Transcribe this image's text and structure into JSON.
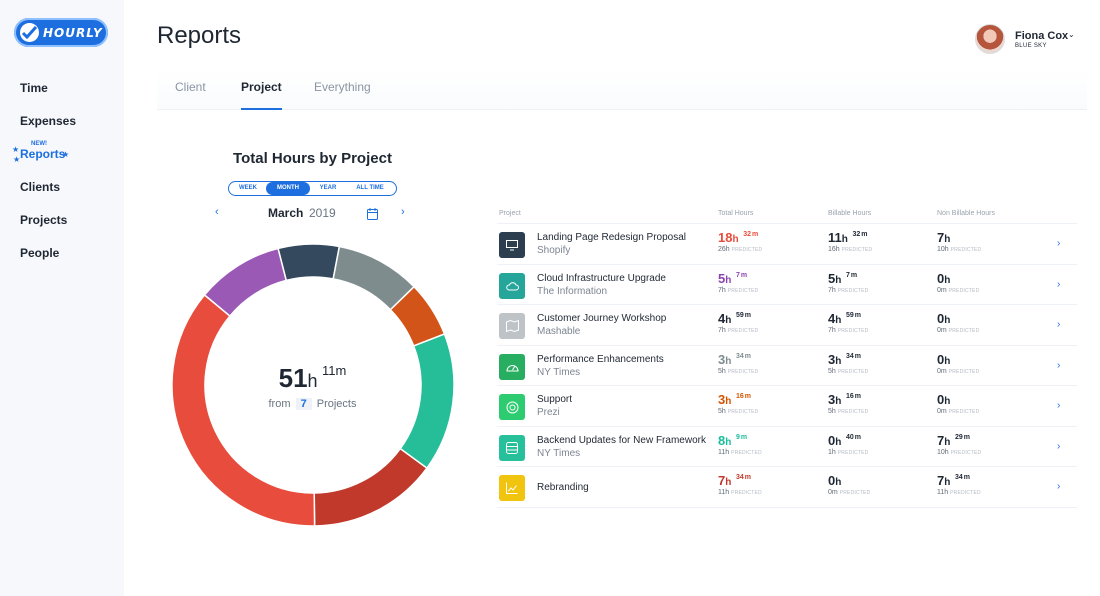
{
  "app": {
    "logo_text": "HOURLY"
  },
  "sidebar": {
    "items": [
      {
        "label": "Time",
        "active": false
      },
      {
        "label": "Expenses",
        "active": false
      },
      {
        "label": "Reports",
        "active": true,
        "badge": "NEW!"
      },
      {
        "label": "Clients",
        "active": false
      },
      {
        "label": "Projects",
        "active": false
      },
      {
        "label": "People",
        "active": false
      }
    ]
  },
  "header": {
    "title": "Reports"
  },
  "user": {
    "name": "Fiona Cox",
    "company": "BLUE SKY"
  },
  "tabs": [
    {
      "label": "Client",
      "active": false
    },
    {
      "label": "Project",
      "active": true
    },
    {
      "label": "Everything",
      "active": false
    }
  ],
  "chart": {
    "title": "Total Hours by Project",
    "ranges": [
      {
        "label": "WEEK",
        "active": false
      },
      {
        "label": "MONTH",
        "active": true
      },
      {
        "label": "YEAR",
        "active": false
      },
      {
        "label": "ALL TIME",
        "active": false
      }
    ],
    "month": "March",
    "year": "2019",
    "total_hours": "51",
    "total_minutes": "11",
    "hours_unit": "h",
    "minutes_unit": "m",
    "from_label": "from",
    "project_count": "7",
    "projects_label": "Projects"
  },
  "chart_data": {
    "type": "pie",
    "donut": true,
    "labels": [
      "Landing Page Redesign Proposal",
      "Cloud Infrastructure Upgrade",
      "Customer Journey Workshop",
      "Performance Enhancements",
      "Support",
      "Backend Updates for New Framework",
      "Rebranding"
    ],
    "values": [
      18.53,
      5.12,
      4.98,
      3.57,
      3.27,
      8.15,
      7.57
    ],
    "display_order": [
      "Cloud Infrastructure Upgrade",
      "Performance Enhancements",
      "Customer Journey Workshop",
      "Support",
      "Backend Updates for New Framework",
      "Rebranding",
      "Landing Page Redesign Proposal"
    ],
    "colors": [
      "#e8544a",
      "#9b59b6",
      "#bcc3c9",
      "#34495e",
      "#2ecc71",
      "#26c09a",
      "#f1c40f"
    ],
    "segment_colors": [
      "#9b59b6",
      "#34495e",
      "#7f8c8d",
      "#d35418",
      "#26be99",
      "#c0392b",
      "#e74c3c"
    ]
  },
  "table": {
    "headers": {
      "project": "Project",
      "total": "Total Hours",
      "billable": "Billable Hours",
      "nonbillable": "Non Billable Hours"
    },
    "predicted_label": "PREDICTED",
    "rows": [
      {
        "name": "Landing Page Redesign Proposal",
        "client": "Shopify",
        "icon": "monitor-icon",
        "icon_bg": "#2c3e50",
        "total": {
          "h": "18",
          "m": "32",
          "color": "#e74c3c",
          "pred": "26h"
        },
        "billable": {
          "h": "11",
          "m": "32",
          "pred": "16h"
        },
        "nonbillable": {
          "h": "7",
          "m": "",
          "pred": "10h"
        }
      },
      {
        "name": "Cloud Infrastructure Upgrade",
        "client": "The Information",
        "icon": "cloud-icon",
        "icon_bg": "#26a69a",
        "total": {
          "h": "5",
          "m": "7",
          "color": "#8e44ad",
          "pred": "7h"
        },
        "billable": {
          "h": "5",
          "m": "7",
          "pred": "7h"
        },
        "nonbillable": {
          "h": "0",
          "m": "",
          "pred": "0m"
        }
      },
      {
        "name": "Customer Journey Workshop",
        "client": "Mashable",
        "icon": "map-icon",
        "icon_bg": "#bdc3c7",
        "total": {
          "h": "4",
          "m": "59",
          "color": "#1f2733",
          "pred": "7h"
        },
        "billable": {
          "h": "4",
          "m": "59",
          "pred": "7h"
        },
        "nonbillable": {
          "h": "0",
          "m": "",
          "pred": "0m"
        }
      },
      {
        "name": "Performance Enhancements",
        "client": "NY Times",
        "icon": "gauge-icon",
        "icon_bg": "#27ae60",
        "total": {
          "h": "3",
          "m": "34",
          "color": "#7f8c8d",
          "pred": "5h"
        },
        "billable": {
          "h": "3",
          "m": "34",
          "pred": "5h"
        },
        "nonbillable": {
          "h": "0",
          "m": "",
          "pred": "0m"
        }
      },
      {
        "name": "Support",
        "client": "Prezi",
        "icon": "lifebuoy-icon",
        "icon_bg": "#2ecc71",
        "total": {
          "h": "3",
          "m": "16",
          "color": "#d35400",
          "pred": "5h"
        },
        "billable": {
          "h": "3",
          "m": "16",
          "pred": "5h"
        },
        "nonbillable": {
          "h": "0",
          "m": "",
          "pred": "0m"
        }
      },
      {
        "name": "Backend Updates for New Framework",
        "client": "NY Times",
        "icon": "database-icon",
        "icon_bg": "#26c09a",
        "total": {
          "h": "8",
          "m": "9",
          "color": "#1abc9c",
          "pred": "11h"
        },
        "billable": {
          "h": "0",
          "m": "40",
          "pred": "1h"
        },
        "nonbillable": {
          "h": "7",
          "m": "29",
          "pred": "10h"
        }
      },
      {
        "name": "Rebranding",
        "client": "",
        "icon": "chart-icon",
        "icon_bg": "#f1c40f",
        "total": {
          "h": "7",
          "m": "34",
          "color": "#c0392b",
          "pred": "11h"
        },
        "billable": {
          "h": "0",
          "m": "",
          "pred": "0m"
        },
        "nonbillable": {
          "h": "7",
          "m": "34",
          "pred": "11h"
        }
      }
    ]
  }
}
